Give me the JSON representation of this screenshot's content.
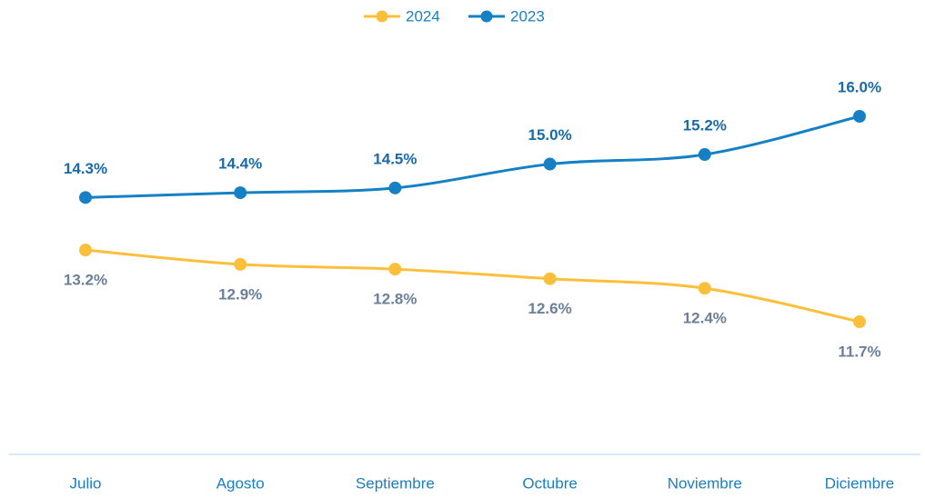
{
  "chart_data": {
    "type": "line",
    "categories": [
      "Julio",
      "Agosto",
      "Septiembre",
      "Octubre",
      "Noviembre",
      "Diciembre"
    ],
    "series": [
      {
        "name": "2024",
        "color": "#fbbf3b",
        "label_color": "#6b7f99",
        "values": [
          13.2,
          12.9,
          12.8,
          12.6,
          12.4,
          11.7
        ],
        "value_labels": [
          "13.2%",
          "12.9%",
          "12.8%",
          "12.6%",
          "12.4%",
          "11.7%"
        ]
      },
      {
        "name": "2023",
        "color": "#1580c4",
        "label_color": "#1a6aa8",
        "values": [
          14.3,
          14.4,
          14.5,
          15.0,
          15.2,
          16.0
        ],
        "value_labels": [
          "14.3%",
          "14.4%",
          "14.5%",
          "15.0%",
          "15.2%",
          "16.0%"
        ]
      }
    ]
  }
}
